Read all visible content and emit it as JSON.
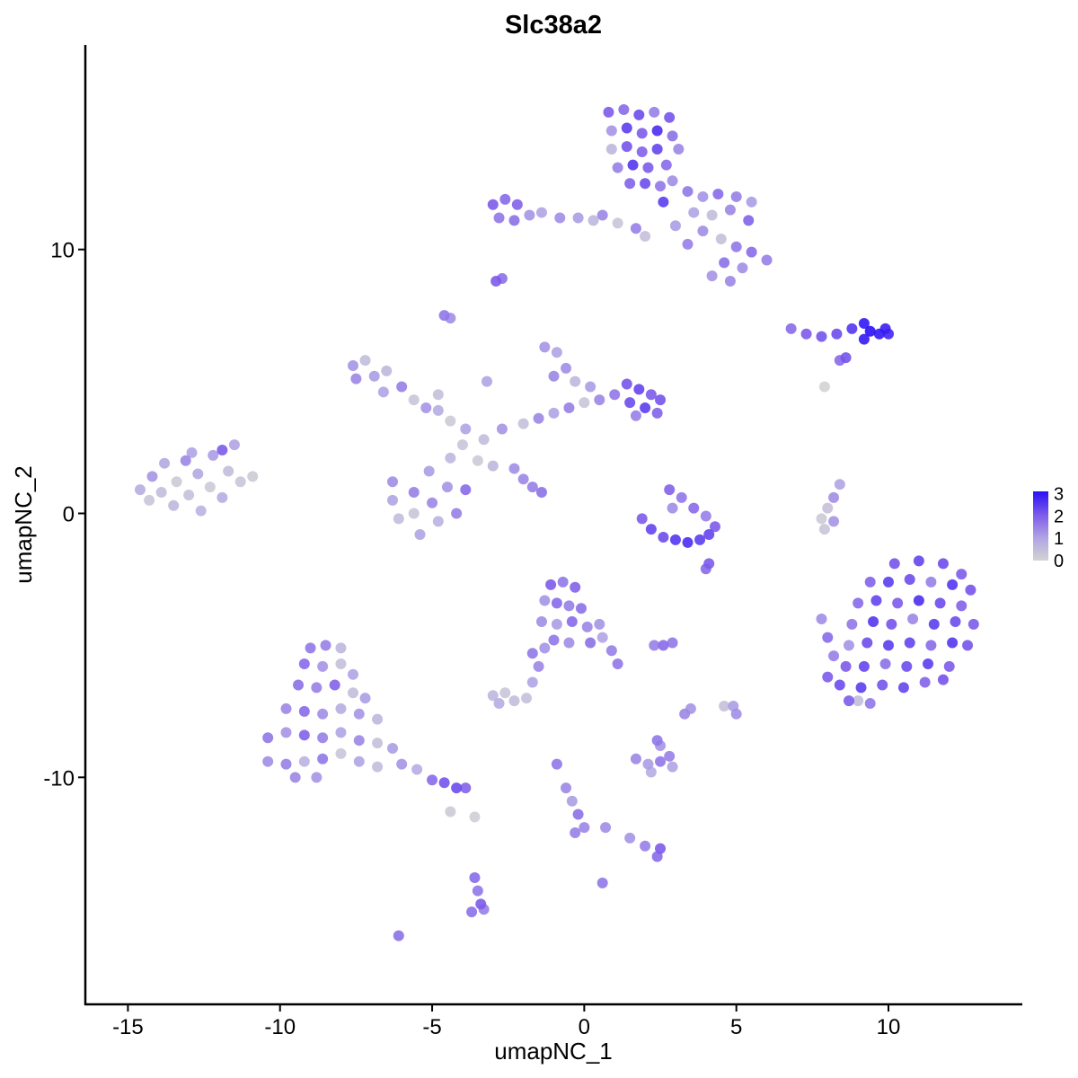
{
  "chart_data": {
    "type": "scatter",
    "title": "Slc38a2",
    "xlabel": "umapNC_1",
    "ylabel": "umapNC_2",
    "xlim": [
      -16.4,
      14.4
    ],
    "ylim": [
      -18.6,
      17.75
    ],
    "xticks": [
      -15,
      -10,
      -5,
      0,
      5,
      10
    ],
    "yticks": [
      -10,
      0,
      10
    ],
    "grid": false,
    "legend": {
      "placement": "right",
      "ticks": [
        0,
        1,
        2,
        3
      ],
      "range": [
        0,
        3.1
      ]
    },
    "color_scale": [
      "#d3d3d3",
      "#b0a4e4",
      "#7d5bea",
      "#2b10f5"
    ],
    "point_format": [
      "umapNC_1",
      "umapNC_2",
      "expression"
    ],
    "points": [
      [
        0.8,
        15.2,
        2
      ],
      [
        1.3,
        15.3,
        1.8
      ],
      [
        1.8,
        15.1,
        2.2
      ],
      [
        2.3,
        15.2,
        1.5
      ],
      [
        2.8,
        15.0,
        2.1
      ],
      [
        0.9,
        14.5,
        1.2
      ],
      [
        1.4,
        14.6,
        2.4
      ],
      [
        1.9,
        14.4,
        2.0
      ],
      [
        2.4,
        14.5,
        2.6
      ],
      [
        2.9,
        14.3,
        1.7
      ],
      [
        3.1,
        13.8,
        1.4
      ],
      [
        0.9,
        13.8,
        0.6
      ],
      [
        1.4,
        13.9,
        2.1
      ],
      [
        1.9,
        13.7,
        1.9
      ],
      [
        2.4,
        13.8,
        2.3
      ],
      [
        2.7,
        13.2,
        1.8
      ],
      [
        1.1,
        13.1,
        1.5
      ],
      [
        1.6,
        13.2,
        2.5
      ],
      [
        2.1,
        13.1,
        2.0
      ],
      [
        1.5,
        12.5,
        1.9
      ],
      [
        2.0,
        12.5,
        2.2
      ],
      [
        2.5,
        12.4,
        1.6
      ],
      [
        2.6,
        11.8,
        2.4
      ],
      [
        2.9,
        12.6,
        1.3
      ],
      [
        3.4,
        12.2,
        1.6
      ],
      [
        3.9,
        12.0,
        1.2
      ],
      [
        4.4,
        12.1,
        1.8
      ],
      [
        5.0,
        12.0,
        1.5
      ],
      [
        5.5,
        11.8,
        1.1
      ],
      [
        3.6,
        11.4,
        1.0
      ],
      [
        4.2,
        11.3,
        0.5
      ],
      [
        4.8,
        11.5,
        1.4
      ],
      [
        5.4,
        11.1,
        1.9
      ],
      [
        3.9,
        10.7,
        1.3
      ],
      [
        4.5,
        10.4,
        0.4
      ],
      [
        5.0,
        10.1,
        1.6
      ],
      [
        5.5,
        9.9,
        1.8
      ],
      [
        6.0,
        9.6,
        1.5
      ],
      [
        5.2,
        9.3,
        1.3
      ],
      [
        4.6,
        9.5,
        1.7
      ],
      [
        4.8,
        8.8,
        1.4
      ],
      [
        4.2,
        9.0,
        1.2
      ],
      [
        3.0,
        10.9,
        1.1
      ],
      [
        3.4,
        10.2,
        1.5
      ],
      [
        -3.0,
        11.7,
        2.0
      ],
      [
        -2.6,
        11.9,
        1.8
      ],
      [
        -2.2,
        11.7,
        1.9
      ],
      [
        -2.8,
        11.2,
        1.6
      ],
      [
        -2.3,
        11.1,
        1.7
      ],
      [
        -1.8,
        11.3,
        1.2
      ],
      [
        -1.4,
        11.4,
        1.0
      ],
      [
        -0.8,
        11.2,
        1.3
      ],
      [
        -0.2,
        11.2,
        1.1
      ],
      [
        0.3,
        11.1,
        0.6
      ],
      [
        0.6,
        11.3,
        1.4
      ],
      [
        1.1,
        11.0,
        0.3
      ],
      [
        1.7,
        10.8,
        1.5
      ],
      [
        2.0,
        10.5,
        0.4
      ],
      [
        -2.9,
        8.8,
        2.0
      ],
      [
        -2.7,
        8.9,
        1.7
      ],
      [
        -4.6,
        7.5,
        1.6
      ],
      [
        -4.4,
        7.4,
        1.3
      ],
      [
        6.8,
        7.0,
        1.8
      ],
      [
        7.3,
        6.8,
        2.0
      ],
      [
        7.8,
        6.7,
        2.1
      ],
      [
        8.3,
        6.8,
        2.2
      ],
      [
        8.8,
        7.0,
        2.5
      ],
      [
        9.2,
        7.2,
        2.9
      ],
      [
        9.4,
        6.9,
        3.0
      ],
      [
        9.7,
        6.8,
        2.9
      ],
      [
        9.9,
        7.0,
        2.8
      ],
      [
        10.0,
        6.8,
        2.7
      ],
      [
        9.2,
        6.6,
        2.9
      ],
      [
        8.6,
        5.9,
        2.1
      ],
      [
        8.4,
        5.8,
        1.8
      ],
      [
        7.9,
        4.8,
        0
      ],
      [
        -7.6,
        5.6,
        1.2
      ],
      [
        -7.2,
        5.8,
        0.5
      ],
      [
        -7.5,
        5.1,
        1.4
      ],
      [
        -6.9,
        5.2,
        1.1
      ],
      [
        -6.5,
        5.4,
        0.6
      ],
      [
        -6.6,
        4.6,
        1.0
      ],
      [
        -6.0,
        4.8,
        1.5
      ],
      [
        -5.6,
        4.3,
        0.3
      ],
      [
        -5.2,
        4.0,
        1.2
      ],
      [
        -4.8,
        3.9,
        0.8
      ],
      [
        -4.4,
        3.5,
        0.2
      ],
      [
        -3.9,
        3.2,
        1.0
      ],
      [
        -6.3,
        1.2,
        1.3
      ],
      [
        -6.3,
        0.5,
        1.0
      ],
      [
        -6.1,
        -0.2,
        0.5
      ],
      [
        -5.6,
        0.8,
        1.5
      ],
      [
        -5.6,
        0.0,
        0.3
      ],
      [
        -5.1,
        1.6,
        1.1
      ],
      [
        -5.0,
        0.4,
        1.4
      ],
      [
        -4.8,
        -0.3,
        0.7
      ],
      [
        -4.5,
        1.0,
        1.2
      ],
      [
        -4.2,
        0.0,
        1.5
      ],
      [
        -3.9,
        0.9,
        1.8
      ],
      [
        -4.4,
        2.1,
        0.6
      ],
      [
        -4.0,
        2.6,
        0.3
      ],
      [
        -5.4,
        -0.8,
        1.0
      ],
      [
        -3.3,
        2.8,
        0.5
      ],
      [
        -2.7,
        3.2,
        1.2
      ],
      [
        -2.0,
        3.4,
        0.4
      ],
      [
        -1.5,
        3.6,
        1.4
      ],
      [
        -1.0,
        3.8,
        1.0
      ],
      [
        -0.5,
        4.0,
        1.5
      ],
      [
        0.0,
        4.2,
        0.3
      ],
      [
        0.5,
        4.3,
        1.4
      ],
      [
        1.0,
        4.5,
        1.6
      ],
      [
        -1.3,
        6.3,
        1.2
      ],
      [
        -0.9,
        6.1,
        1.0
      ],
      [
        -0.6,
        5.5,
        1.3
      ],
      [
        -0.3,
        5.0,
        0.6
      ],
      [
        -1.0,
        5.2,
        1.4
      ],
      [
        0.2,
        4.8,
        1.1
      ],
      [
        1.4,
        4.9,
        2.1
      ],
      [
        1.8,
        4.7,
        2.3
      ],
      [
        2.2,
        4.5,
        2.0
      ],
      [
        1.5,
        4.2,
        2.2
      ],
      [
        2.0,
        4.0,
        2.4
      ],
      [
        2.4,
        3.8,
        1.9
      ],
      [
        2.5,
        4.3,
        2.1
      ],
      [
        1.7,
        3.7,
        1.5
      ],
      [
        -2.3,
        1.7,
        1.3
      ],
      [
        -2.0,
        1.3,
        1.4
      ],
      [
        -1.7,
        1.0,
        1.5
      ],
      [
        -1.4,
        0.8,
        1.7
      ],
      [
        -3.5,
        2.0,
        0.2
      ],
      [
        -3.0,
        1.8,
        0.6
      ],
      [
        -4.8,
        4.5,
        0.4
      ],
      [
        -3.2,
        5.0,
        1.0
      ],
      [
        -14.6,
        0.9,
        0.8
      ],
      [
        -14.3,
        0.5,
        0.3
      ],
      [
        -14.2,
        1.4,
        1.2
      ],
      [
        -13.9,
        0.8,
        0.5
      ],
      [
        -13.8,
        1.9,
        0.9
      ],
      [
        -13.5,
        0.3,
        0.6
      ],
      [
        -13.4,
        1.2,
        0.2
      ],
      [
        -13.1,
        2.0,
        1.4
      ],
      [
        -13.0,
        0.7,
        0.4
      ],
      [
        -12.7,
        1.5,
        0.9
      ],
      [
        -12.6,
        0.1,
        0.7
      ],
      [
        -12.3,
        1.0,
        0.2
      ],
      [
        -12.2,
        2.2,
        1.1
      ],
      [
        -11.9,
        0.6,
        0.8
      ],
      [
        -11.7,
        1.6,
        0.5
      ],
      [
        -11.5,
        2.6,
        1.0
      ],
      [
        -11.3,
        1.2,
        0.3
      ],
      [
        -10.9,
        1.4,
        0.2
      ],
      [
        -12.9,
        2.3,
        1.0
      ],
      [
        -11.9,
        2.4,
        2.0
      ],
      [
        1.9,
        -0.2,
        2.0
      ],
      [
        2.2,
        -0.6,
        2.3
      ],
      [
        2.6,
        -0.9,
        2.2
      ],
      [
        3.0,
        -1.0,
        2.5
      ],
      [
        3.4,
        -1.1,
        2.6
      ],
      [
        3.8,
        -1.0,
        2.4
      ],
      [
        4.1,
        -0.8,
        2.3
      ],
      [
        4.3,
        -0.5,
        2.0
      ],
      [
        2.8,
        0.9,
        1.9
      ],
      [
        3.2,
        0.6,
        1.6
      ],
      [
        3.6,
        0.2,
        1.8
      ],
      [
        2.9,
        0.2,
        1.3
      ],
      [
        4.0,
        -0.1,
        1.5
      ],
      [
        4.1,
        -1.9,
        2.0
      ],
      [
        8.4,
        1.1,
        1.0
      ],
      [
        8.2,
        0.6,
        1.3
      ],
      [
        8.0,
        0.2,
        0.4
      ],
      [
        7.8,
        -0.2,
        0.2
      ],
      [
        7.9,
        -0.6,
        0.3
      ],
      [
        8.2,
        -0.3,
        1.2
      ],
      [
        10.2,
        -1.9,
        2.1
      ],
      [
        11.0,
        -1.8,
        2.3
      ],
      [
        11.8,
        -1.9,
        2.2
      ],
      [
        12.4,
        -2.3,
        2.0
      ],
      [
        9.4,
        -2.6,
        1.9
      ],
      [
        10.0,
        -2.6,
        2.4
      ],
      [
        10.7,
        -2.5,
        2.2
      ],
      [
        11.4,
        -2.6,
        1.5
      ],
      [
        12.1,
        -2.7,
        2.5
      ],
      [
        12.7,
        -2.9,
        2.1
      ],
      [
        9.0,
        -3.4,
        1.8
      ],
      [
        9.6,
        -3.3,
        2.3
      ],
      [
        10.3,
        -3.4,
        2.0
      ],
      [
        11.0,
        -3.3,
        2.6
      ],
      [
        11.7,
        -3.4,
        2.2
      ],
      [
        12.4,
        -3.5,
        1.9
      ],
      [
        8.8,
        -4.2,
        1.6
      ],
      [
        9.5,
        -4.1,
        2.5
      ],
      [
        10.1,
        -4.2,
        2.1
      ],
      [
        10.8,
        -4.0,
        1.4
      ],
      [
        11.5,
        -4.2,
        2.4
      ],
      [
        12.2,
        -4.1,
        2.2
      ],
      [
        12.8,
        -4.2,
        2.0
      ],
      [
        8.7,
        -5.0,
        1.2
      ],
      [
        9.3,
        -4.9,
        2.2
      ],
      [
        10.0,
        -5.0,
        2.4
      ],
      [
        10.7,
        -4.9,
        2.3
      ],
      [
        11.4,
        -5.0,
        1.8
      ],
      [
        12.1,
        -4.9,
        2.5
      ],
      [
        12.6,
        -5.0,
        2.1
      ],
      [
        8.6,
        -5.8,
        2.0
      ],
      [
        9.2,
        -5.8,
        2.3
      ],
      [
        9.9,
        -5.7,
        1.7
      ],
      [
        10.6,
        -5.8,
        2.2
      ],
      [
        11.3,
        -5.7,
        2.4
      ],
      [
        12.0,
        -5.8,
        2.0
      ],
      [
        8.4,
        -6.5,
        2.2
      ],
      [
        9.1,
        -6.6,
        2.4
      ],
      [
        9.8,
        -6.5,
        2.1
      ],
      [
        10.5,
        -6.6,
        2.3
      ],
      [
        11.2,
        -6.4,
        1.9
      ],
      [
        11.8,
        -6.3,
        2.1
      ],
      [
        8.7,
        -7.1,
        2.0
      ],
      [
        9.4,
        -7.2,
        1.6
      ],
      [
        9.0,
        -7.1,
        0.5
      ],
      [
        7.8,
        -4.0,
        1.3
      ],
      [
        8.0,
        -4.7,
        1.8
      ],
      [
        8.2,
        -5.4,
        1.5
      ],
      [
        8.0,
        -6.2,
        2.0
      ],
      [
        -9.0,
        -5.1,
        1.6
      ],
      [
        -8.5,
        -5.0,
        1.5
      ],
      [
        -8.0,
        -5.1,
        0.6
      ],
      [
        -9.2,
        -5.7,
        1.8
      ],
      [
        -8.6,
        -5.8,
        1.2
      ],
      [
        -8.0,
        -5.7,
        0.4
      ],
      [
        -7.6,
        -6.1,
        1.0
      ],
      [
        -9.4,
        -6.5,
        1.7
      ],
      [
        -8.8,
        -6.6,
        1.5
      ],
      [
        -8.2,
        -6.5,
        1.9
      ],
      [
        -7.6,
        -6.8,
        0.5
      ],
      [
        -7.2,
        -7.0,
        1.1
      ],
      [
        -9.8,
        -7.4,
        1.4
      ],
      [
        -9.2,
        -7.5,
        1.8
      ],
      [
        -8.6,
        -7.6,
        1.3
      ],
      [
        -8.0,
        -7.4,
        0.8
      ],
      [
        -7.4,
        -7.6,
        1.2
      ],
      [
        -6.8,
        -7.8,
        0.6
      ],
      [
        -10.4,
        -8.5,
        1.6
      ],
      [
        -9.8,
        -8.3,
        1.2
      ],
      [
        -9.2,
        -8.4,
        1.9
      ],
      [
        -8.6,
        -8.5,
        1.5
      ],
      [
        -8.0,
        -8.3,
        1.0
      ],
      [
        -7.4,
        -8.6,
        1.4
      ],
      [
        -6.8,
        -8.7,
        0.4
      ],
      [
        -6.3,
        -8.9,
        1.1
      ],
      [
        -10.4,
        -9.4,
        1.3
      ],
      [
        -9.8,
        -9.5,
        1.5
      ],
      [
        -9.2,
        -9.4,
        0.7
      ],
      [
        -8.6,
        -9.3,
        1.6
      ],
      [
        -8.0,
        -9.1,
        0.3
      ],
      [
        -7.4,
        -9.4,
        1.0
      ],
      [
        -6.8,
        -9.6,
        0.5
      ],
      [
        -6.0,
        -9.5,
        1.2
      ],
      [
        -5.5,
        -9.7,
        0.8
      ],
      [
        -9.5,
        -10.0,
        1.4
      ],
      [
        -8.8,
        -10.0,
        1.2
      ],
      [
        -5.0,
        -10.1,
        1.8
      ],
      [
        -4.6,
        -10.2,
        2.1
      ],
      [
        -4.2,
        -10.4,
        2.2
      ],
      [
        -3.9,
        -10.4,
        1.9
      ],
      [
        -4.4,
        -11.3,
        0.2
      ],
      [
        -1.1,
        -2.7,
        2.0
      ],
      [
        -0.7,
        -2.6,
        1.6
      ],
      [
        -0.3,
        -2.8,
        1.9
      ],
      [
        -1.3,
        -3.3,
        1.2
      ],
      [
        -0.9,
        -3.4,
        1.8
      ],
      [
        -0.5,
        -3.5,
        1.5
      ],
      [
        -0.1,
        -3.6,
        1.7
      ],
      [
        -1.4,
        -4.1,
        1.3
      ],
      [
        -0.9,
        -4.2,
        1.1
      ],
      [
        -0.4,
        -4.1,
        1.8
      ],
      [
        0.1,
        -4.3,
        1.4
      ],
      [
        0.5,
        -4.2,
        1.2
      ],
      [
        -1.0,
        -4.8,
        1.6
      ],
      [
        -0.5,
        -4.9,
        1.3
      ],
      [
        0.2,
        -4.9,
        1.7
      ],
      [
        0.6,
        -4.7,
        1.0
      ],
      [
        0.9,
        -5.2,
        1.5
      ],
      [
        1.1,
        -5.7,
        1.6
      ],
      [
        -1.3,
        -5.1,
        1.2
      ],
      [
        -1.7,
        -5.3,
        1.6
      ],
      [
        -1.5,
        -5.8,
        1.4
      ],
      [
        -1.7,
        -6.4,
        1.0
      ],
      [
        -3.0,
        -6.9,
        0.6
      ],
      [
        -2.6,
        -6.8,
        0.3
      ],
      [
        -2.3,
        -7.1,
        0.5
      ],
      [
        -2.8,
        -7.2,
        0.8
      ],
      [
        -1.9,
        -7.0,
        0.4
      ],
      [
        2.6,
        -5.0,
        1.8
      ],
      [
        2.9,
        -4.9,
        1.6
      ],
      [
        4.0,
        -2.1,
        1.8
      ],
      [
        2.3,
        -5.0,
        1.5
      ],
      [
        3.3,
        -7.6,
        1.4
      ],
      [
        3.5,
        -7.4,
        1.2
      ],
      [
        4.9,
        -7.3,
        1.1
      ],
      [
        5.0,
        -7.6,
        1.3
      ],
      [
        4.6,
        -7.3,
        0.4
      ],
      [
        2.4,
        -8.6,
        1.6
      ],
      [
        2.5,
        -8.8,
        1.2
      ],
      [
        1.7,
        -9.3,
        1.4
      ],
      [
        2.1,
        -9.5,
        1.1
      ],
      [
        2.5,
        -9.4,
        1.6
      ],
      [
        2.9,
        -9.6,
        1.0
      ],
      [
        2.2,
        -9.8,
        0.8
      ],
      [
        2.8,
        -9.2,
        1.5
      ],
      [
        -0.9,
        -9.5,
        1.6
      ],
      [
        -0.6,
        -10.4,
        1.4
      ],
      [
        -0.4,
        -10.9,
        1.1
      ],
      [
        -0.2,
        -11.4,
        1.7
      ],
      [
        0.0,
        -11.9,
        1.4
      ],
      [
        -0.3,
        -12.1,
        1.5
      ],
      [
        0.7,
        -11.9,
        1.3
      ],
      [
        1.5,
        -12.3,
        1.2
      ],
      [
        2.0,
        -12.6,
        1.5
      ],
      [
        2.5,
        -12.7,
        2.0
      ],
      [
        2.4,
        -13.0,
        1.8
      ],
      [
        0.6,
        -14.0,
        1.6
      ],
      [
        -3.6,
        -13.8,
        1.8
      ],
      [
        -3.5,
        -14.3,
        1.6
      ],
      [
        -3.4,
        -14.8,
        2.0
      ],
      [
        -3.7,
        -15.1,
        1.7
      ],
      [
        -3.3,
        -15.0,
        1.5
      ],
      [
        -6.1,
        -16.0,
        1.7
      ],
      [
        -3.6,
        -11.5,
        0.1
      ]
    ]
  }
}
